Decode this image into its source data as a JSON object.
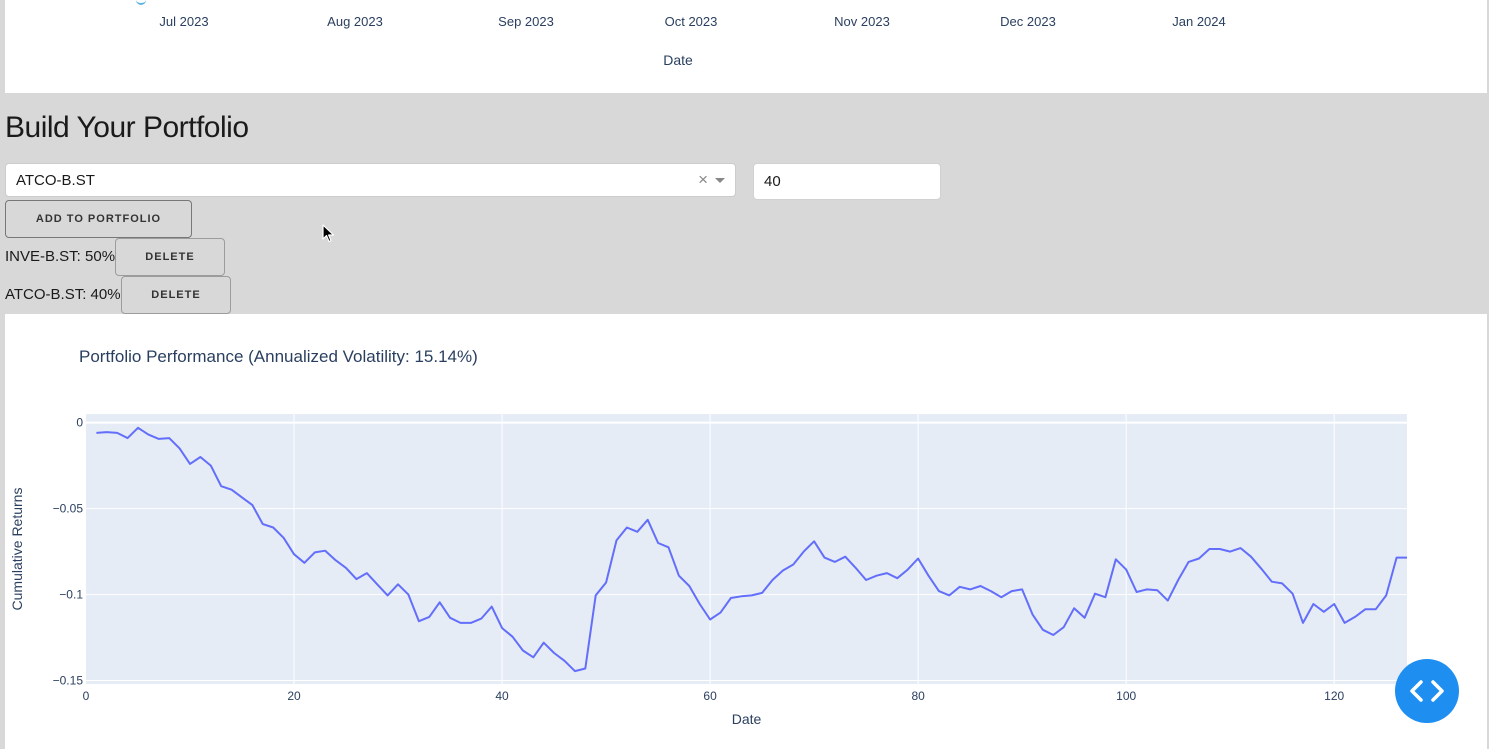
{
  "top_chart": {
    "ticks": [
      "Jul 2023",
      "Aug 2023",
      "Sep 2023",
      "Oct 2023",
      "Nov 2023",
      "Dec 2023",
      "Jan 2024"
    ],
    "xlabel": "Date"
  },
  "builder": {
    "title": "Build Your Portfolio",
    "ticker_dropdown": {
      "value": "ATCO-B.ST",
      "clear_glyph": "×"
    },
    "weight_input": {
      "value": "40"
    },
    "add_button_label": "Add to Portfolio",
    "holdings": [
      {
        "label": "INVE-B.ST: 50%",
        "delete_label": "Delete"
      },
      {
        "label": "ATCO-B.ST: 40%",
        "delete_label": "Delete"
      }
    ]
  },
  "icons": {
    "fab": "code-brackets-icon",
    "cursor": "mouse-pointer-icon",
    "clear": "clear-icon",
    "dropdown": "chevron-down-icon"
  },
  "colors": {
    "line": "#636efa",
    "plot_bg": "#e5ecf6",
    "section_bg": "#d8d8d8",
    "fab": "#1f8ef1",
    "axis_text": "#2a3f5f"
  },
  "chart_data": {
    "type": "line",
    "title": "Portfolio Performance (Annualized Volatility: 15.14%)",
    "xlabel": "Date",
    "ylabel": "Cumulative Returns",
    "xlim": [
      0,
      127
    ],
    "ylim": [
      -0.152,
      0.005
    ],
    "xticks": [
      0,
      20,
      40,
      60,
      80,
      100,
      120
    ],
    "yticks": [
      0,
      -0.05,
      -0.1,
      -0.15
    ],
    "ytick_labels": [
      "0",
      "−0.05",
      "−0.1",
      "−0.15"
    ],
    "grid": true,
    "x": [
      1,
      2,
      3,
      4,
      5,
      6,
      7,
      8,
      9,
      10,
      11,
      12,
      13,
      14,
      15,
      16,
      17,
      18,
      19,
      20,
      21,
      22,
      23,
      24,
      25,
      26,
      27,
      28,
      29,
      30,
      31,
      32,
      33,
      34,
      35,
      36,
      37,
      38,
      39,
      40,
      41,
      42,
      43,
      44,
      45,
      46,
      47,
      48,
      49,
      50,
      51,
      52,
      53,
      54,
      55,
      56,
      57,
      58,
      59,
      60,
      61,
      62,
      63,
      64,
      65,
      66,
      67,
      68,
      69,
      70,
      71,
      72,
      73,
      74,
      75,
      76,
      77,
      78,
      79,
      80,
      81,
      82,
      83,
      84,
      85,
      86,
      87,
      88,
      89,
      90,
      91,
      92,
      93,
      94,
      95,
      96,
      97,
      98,
      99,
      100,
      101,
      102,
      103,
      104,
      105,
      106,
      107,
      108,
      109,
      110,
      111,
      112,
      113,
      114,
      115,
      116,
      117,
      118,
      119,
      120,
      121,
      122,
      123,
      124,
      125,
      126,
      127
    ],
    "series": [
      {
        "values": [
          -0.006,
          -0.0055,
          -0.006,
          -0.009,
          -0.003,
          -0.007,
          -0.0095,
          -0.009,
          -0.015,
          -0.024,
          -0.02,
          -0.025,
          -0.037,
          -0.039,
          -0.0435,
          -0.048,
          -0.059,
          -0.061,
          -0.067,
          -0.0765,
          -0.0815,
          -0.0755,
          -0.0745,
          -0.08,
          -0.0845,
          -0.091,
          -0.0875,
          -0.094,
          -0.1005,
          -0.094,
          -0.1,
          -0.1155,
          -0.113,
          -0.1045,
          -0.1135,
          -0.1165,
          -0.1165,
          -0.114,
          -0.107,
          -0.1195,
          -0.1245,
          -0.1325,
          -0.1365,
          -0.128,
          -0.134,
          -0.1385,
          -0.1445,
          -0.143,
          -0.1005,
          -0.093,
          -0.0685,
          -0.061,
          -0.0635,
          -0.0565,
          -0.07,
          -0.0725,
          -0.089,
          -0.095,
          -0.1055,
          -0.1145,
          -0.1105,
          -0.102,
          -0.101,
          -0.1005,
          -0.099,
          -0.0915,
          -0.086,
          -0.0825,
          -0.075,
          -0.069,
          -0.0785,
          -0.081,
          -0.078,
          -0.0845,
          -0.0915,
          -0.089,
          -0.0875,
          -0.0905,
          -0.0855,
          -0.079,
          -0.089,
          -0.098,
          -0.1005,
          -0.0955,
          -0.097,
          -0.095,
          -0.098,
          -0.1015,
          -0.098,
          -0.097,
          -0.1115,
          -0.1205,
          -0.1235,
          -0.119,
          -0.108,
          -0.1135,
          -0.0995,
          -0.1015,
          -0.0795,
          -0.0855,
          -0.0985,
          -0.097,
          -0.0975,
          -0.1035,
          -0.0915,
          -0.081,
          -0.079,
          -0.0735,
          -0.0735,
          -0.075,
          -0.073,
          -0.078,
          -0.085,
          -0.0925,
          -0.0935,
          -0.0995,
          -0.1165,
          -0.1055,
          -0.11,
          -0.1055,
          -0.1165,
          -0.113,
          -0.1085,
          -0.1085,
          -0.1005,
          -0.0785,
          -0.0785
        ]
      }
    ]
  }
}
